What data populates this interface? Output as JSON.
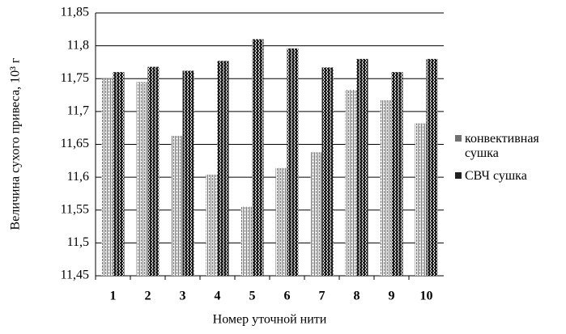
{
  "chart_data": {
    "type": "bar",
    "ylabel": "Величина сухого привеса, 10³ г",
    "xlabel": "Номер уточной нити",
    "categories": [
      "1",
      "2",
      "3",
      "4",
      "5",
      "6",
      "7",
      "8",
      "9",
      "10"
    ],
    "series": [
      {
        "name": "конвективная сушка",
        "color": "#707070",
        "values": [
          11.75,
          11.745,
          11.663,
          11.604,
          11.555,
          11.614,
          11.638,
          11.733,
          11.717,
          11.682
        ]
      },
      {
        "name": "СВЧ сушка",
        "color": "#202020",
        "values": [
          11.76,
          11.768,
          11.762,
          11.777,
          11.81,
          11.796,
          11.767,
          11.78,
          11.76,
          11.78
        ]
      }
    ],
    "ylim": [
      11.45,
      11.85
    ],
    "yticks": [
      {
        "value": 11.45,
        "label": "11,45"
      },
      {
        "value": 11.5,
        "label": "11,5"
      },
      {
        "value": 11.55,
        "label": "11,55"
      },
      {
        "value": 11.6,
        "label": "11,6"
      },
      {
        "value": 11.65,
        "label": "11,65"
      },
      {
        "value": 11.7,
        "label": "11,7"
      },
      {
        "value": 11.75,
        "label": "11,75"
      },
      {
        "value": 11.8,
        "label": "11,8"
      },
      {
        "value": 11.85,
        "label": "11,85"
      }
    ],
    "grid": true,
    "legend": "right"
  }
}
